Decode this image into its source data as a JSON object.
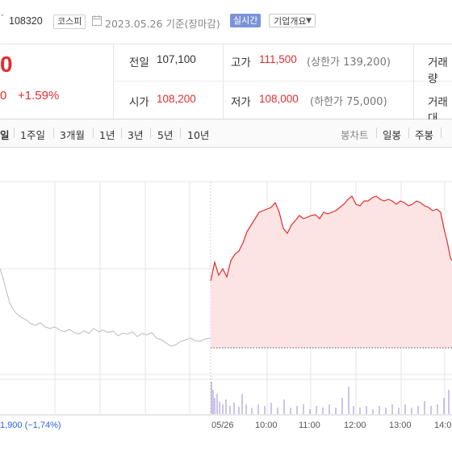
{
  "header": {
    "caret": "˅",
    "stock_code": "108320",
    "market": "코스피",
    "date_label": "2023.05.26 기준(장마감)",
    "realtime_label": "실시간",
    "overview_label": "기업개요"
  },
  "price": {
    "current_fragment": "0",
    "change_abs_fragment": "0",
    "change_rate": "+1.59%"
  },
  "summary": {
    "prev_close_label": "전일",
    "prev_close": "107,100",
    "high_label": "고가",
    "high": "111,500",
    "upper_limit": "(상한가 139,200)",
    "volume_label_fragment": "거래량",
    "open_label": "시가",
    "open": "108,200",
    "low_label": "저가",
    "low": "108,000",
    "lower_limit": "(하한가 75,000)",
    "amount_label_fragment": "거래대"
  },
  "periods": [
    {
      "label": "일",
      "selected": true
    },
    {
      "label": "1주일",
      "selected": false
    },
    {
      "label": "3개월",
      "selected": false
    },
    {
      "label": "1년",
      "selected": false
    },
    {
      "label": "3년",
      "selected": false
    },
    {
      "label": "5년",
      "selected": false
    },
    {
      "label": "10년",
      "selected": false
    }
  ],
  "chart_types": [
    {
      "label": "봉차트",
      "dim": true
    },
    {
      "label": "일봉",
      "dim": false
    },
    {
      "label": "주봉",
      "dim": false
    }
  ],
  "colors": {
    "up": "#e12d2d",
    "down": "#2d62e1",
    "prev_day_line": "#bbbbbb",
    "fill": "#fde4e4",
    "volume": "#9b8ad6"
  },
  "chart_data": {
    "type": "line",
    "x_labels": [
      "05/26",
      "10:00",
      "11:00",
      "12:00",
      "13:00",
      "14:0"
    ],
    "prev_day_summary": "1,900 (−1,74%)",
    "series": [
      {
        "values": [
          108.2,
          108.6,
          109.4,
          109.1,
          110.3,
          110.0,
          110.8,
          110.9,
          111.0,
          110.8,
          111.1,
          111.2,
          110.9,
          111.3,
          111.5,
          111.2,
          111.0,
          111.4,
          111.2,
          110.9,
          110.3,
          109.4
        ]
      }
    ]
  }
}
